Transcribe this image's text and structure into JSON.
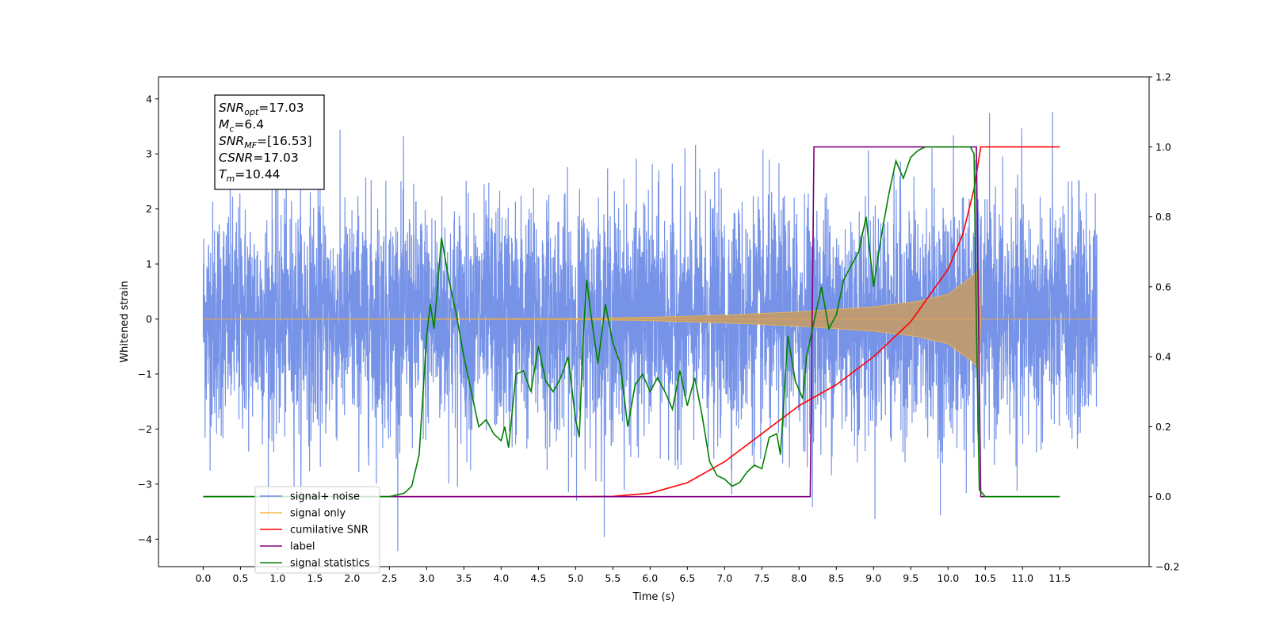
{
  "chart_data": {
    "type": "line",
    "xlabel": "Time (s)",
    "ylabel": "Whitened strain",
    "xlim": [
      -0.6,
      12.7
    ],
    "ylim": [
      -4.5,
      4.4
    ],
    "y2lim": [
      -0.2,
      1.2
    ],
    "x_ticks": [
      "0.0",
      "0.5",
      "1.0",
      "1.5",
      "2.0",
      "2.5",
      "3.0",
      "3.5",
      "4.0",
      "4.5",
      "5.0",
      "5.5",
      "6.0",
      "6.5",
      "7.0",
      "7.5",
      "8.0",
      "8.5",
      "9.0",
      "9.5",
      "10.0",
      "10.5",
      "11.0",
      "11.5"
    ],
    "y_ticks": [
      "−4",
      "−3",
      "−2",
      "−1",
      "0",
      "1",
      "2",
      "3",
      "4"
    ],
    "y2_ticks": [
      "−0.2",
      "0.0",
      "0.2",
      "0.4",
      "0.6",
      "0.8",
      "1.0",
      "1.2"
    ],
    "legend_position": "lower-left",
    "grid": false,
    "info_box": {
      "lines": [
        {
          "main": "SNR",
          "sub": "opt",
          "rest": "=17.03"
        },
        {
          "main": "M",
          "sub": "c",
          "rest": "=6.4"
        },
        {
          "main": "SNR",
          "sub": "MF",
          "rest": "=[16.53]"
        },
        {
          "main": "CSNR",
          "sub": "",
          "rest": "=17.03"
        },
        {
          "main": "T",
          "sub": "m",
          "rest": "=10.44"
        }
      ]
    },
    "series": [
      {
        "name": "signal+ noise",
        "color": "#6f8de6",
        "axis": "left",
        "kind": "noise",
        "x_range": [
          0.0,
          12.0
        ],
        "noise_sigma": 1.05,
        "envelope": [
          [
            0.0,
            0.0
          ],
          [
            5.0,
            0.01
          ],
          [
            6.0,
            0.03
          ],
          [
            7.0,
            0.07
          ],
          [
            8.0,
            0.13
          ],
          [
            9.0,
            0.22
          ],
          [
            9.6,
            0.32
          ],
          [
            10.0,
            0.45
          ],
          [
            10.3,
            0.75
          ],
          [
            10.42,
            0.9
          ],
          [
            10.44,
            0.0
          ],
          [
            12.0,
            0.0
          ]
        ]
      },
      {
        "name": "signal only",
        "color": "#f5b942",
        "axis": "left",
        "kind": "chirp",
        "envelope": [
          [
            0.0,
            0.0
          ],
          [
            5.0,
            0.01
          ],
          [
            6.0,
            0.03
          ],
          [
            7.0,
            0.07
          ],
          [
            8.0,
            0.13
          ],
          [
            9.0,
            0.22
          ],
          [
            9.6,
            0.32
          ],
          [
            10.0,
            0.45
          ],
          [
            10.3,
            0.75
          ],
          [
            10.42,
            0.9
          ],
          [
            10.44,
            0.0
          ],
          [
            12.0,
            0.0
          ]
        ]
      },
      {
        "name": "cumilative SNR",
        "color": "#ff0000",
        "axis": "right",
        "points": [
          [
            0.0,
            0.0
          ],
          [
            5.0,
            0.0
          ],
          [
            5.5,
            0.001
          ],
          [
            6.0,
            0.01
          ],
          [
            6.5,
            0.04
          ],
          [
            7.0,
            0.1
          ],
          [
            7.5,
            0.18
          ],
          [
            8.0,
            0.26
          ],
          [
            8.5,
            0.32
          ],
          [
            9.0,
            0.4
          ],
          [
            9.5,
            0.5
          ],
          [
            10.0,
            0.65
          ],
          [
            10.2,
            0.75
          ],
          [
            10.35,
            0.88
          ],
          [
            10.44,
            1.0
          ],
          [
            11.5,
            1.0
          ]
        ]
      },
      {
        "name": "label",
        "color": "#800080",
        "axis": "right",
        "points": [
          [
            0.0,
            0.0
          ],
          [
            8.15,
            0.0
          ],
          [
            8.2,
            1.0
          ],
          [
            10.38,
            1.0
          ],
          [
            10.44,
            0.0
          ],
          [
            11.5,
            0.0
          ]
        ]
      },
      {
        "name": "signal statistics",
        "color": "#008000",
        "axis": "right",
        "points": [
          [
            0.0,
            0.0
          ],
          [
            2.5,
            0.0
          ],
          [
            2.7,
            0.01
          ],
          [
            2.8,
            0.03
          ],
          [
            2.9,
            0.12
          ],
          [
            3.0,
            0.46
          ],
          [
            3.05,
            0.55
          ],
          [
            3.1,
            0.48
          ],
          [
            3.2,
            0.74
          ],
          [
            3.3,
            0.62
          ],
          [
            3.4,
            0.52
          ],
          [
            3.5,
            0.4
          ],
          [
            3.6,
            0.3
          ],
          [
            3.7,
            0.2
          ],
          [
            3.8,
            0.22
          ],
          [
            3.9,
            0.18
          ],
          [
            4.0,
            0.16
          ],
          [
            4.05,
            0.2
          ],
          [
            4.1,
            0.14
          ],
          [
            4.2,
            0.35
          ],
          [
            4.3,
            0.36
          ],
          [
            4.4,
            0.3
          ],
          [
            4.5,
            0.43
          ],
          [
            4.6,
            0.33
          ],
          [
            4.7,
            0.3
          ],
          [
            4.8,
            0.34
          ],
          [
            4.9,
            0.4
          ],
          [
            5.0,
            0.22
          ],
          [
            5.05,
            0.17
          ],
          [
            5.1,
            0.45
          ],
          [
            5.15,
            0.62
          ],
          [
            5.2,
            0.53
          ],
          [
            5.3,
            0.38
          ],
          [
            5.4,
            0.55
          ],
          [
            5.5,
            0.44
          ],
          [
            5.6,
            0.38
          ],
          [
            5.7,
            0.2
          ],
          [
            5.8,
            0.32
          ],
          [
            5.9,
            0.35
          ],
          [
            6.0,
            0.3
          ],
          [
            6.1,
            0.34
          ],
          [
            6.2,
            0.3
          ],
          [
            6.3,
            0.25
          ],
          [
            6.4,
            0.36
          ],
          [
            6.5,
            0.26
          ],
          [
            6.6,
            0.34
          ],
          [
            6.7,
            0.23
          ],
          [
            6.8,
            0.1
          ],
          [
            6.9,
            0.06
          ],
          [
            7.0,
            0.05
          ],
          [
            7.1,
            0.03
          ],
          [
            7.2,
            0.04
          ],
          [
            7.3,
            0.07
          ],
          [
            7.4,
            0.09
          ],
          [
            7.5,
            0.08
          ],
          [
            7.6,
            0.17
          ],
          [
            7.7,
            0.18
          ],
          [
            7.75,
            0.12
          ],
          [
            7.85,
            0.46
          ],
          [
            7.95,
            0.33
          ],
          [
            8.05,
            0.28
          ],
          [
            8.1,
            0.4
          ],
          [
            8.2,
            0.5
          ],
          [
            8.3,
            0.6
          ],
          [
            8.4,
            0.48
          ],
          [
            8.5,
            0.52
          ],
          [
            8.6,
            0.62
          ],
          [
            8.7,
            0.66
          ],
          [
            8.8,
            0.7
          ],
          [
            8.9,
            0.8
          ],
          [
            9.0,
            0.6
          ],
          [
            9.1,
            0.74
          ],
          [
            9.2,
            0.86
          ],
          [
            9.3,
            0.96
          ],
          [
            9.4,
            0.91
          ],
          [
            9.5,
            0.97
          ],
          [
            9.6,
            0.99
          ],
          [
            9.7,
            1.0
          ],
          [
            10.0,
            1.0
          ],
          [
            10.3,
            1.0
          ],
          [
            10.35,
            0.98
          ],
          [
            10.38,
            0.5
          ],
          [
            10.42,
            0.02
          ],
          [
            10.5,
            0.0
          ],
          [
            11.5,
            0.0
          ]
        ]
      }
    ]
  }
}
